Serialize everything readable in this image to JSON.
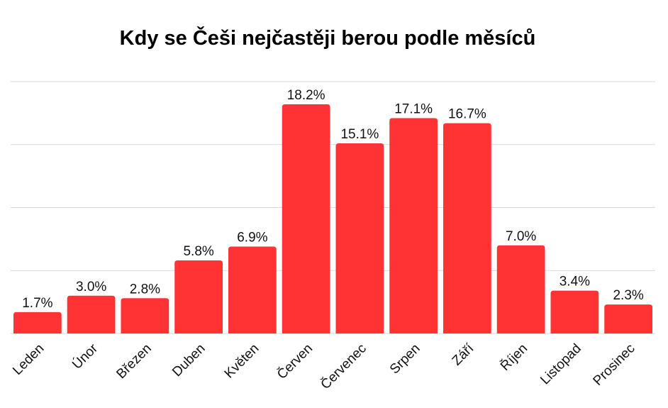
{
  "chart_data": {
    "type": "bar",
    "title": "Kdy se Češi nejčastěji berou podle měsíců",
    "xlabel": "",
    "ylabel": "",
    "categories": [
      "Leden",
      "Únor",
      "Březen",
      "Duben",
      "Květen",
      "Červen",
      "Červenec",
      "Srpen",
      "Září",
      "Říjen",
      "Listopad",
      "Prosinec"
    ],
    "values": [
      1.7,
      3.0,
      2.8,
      5.8,
      6.9,
      18.2,
      15.1,
      17.1,
      16.7,
      7.0,
      3.4,
      2.3
    ],
    "value_labels": [
      "1.7%",
      "3.0%",
      "2.8%",
      "5.8%",
      "6.9%",
      "18.2%",
      "15.1%",
      "17.1%",
      "16.7%",
      "7.0%",
      "3.4%",
      "2.3%"
    ],
    "ylim": [
      0,
      20
    ],
    "gridlines": [
      5,
      10,
      15,
      20
    ],
    "grid": true,
    "legend": "none",
    "bar_color": "#ff3333",
    "grid_color": "#d9d9d9"
  }
}
